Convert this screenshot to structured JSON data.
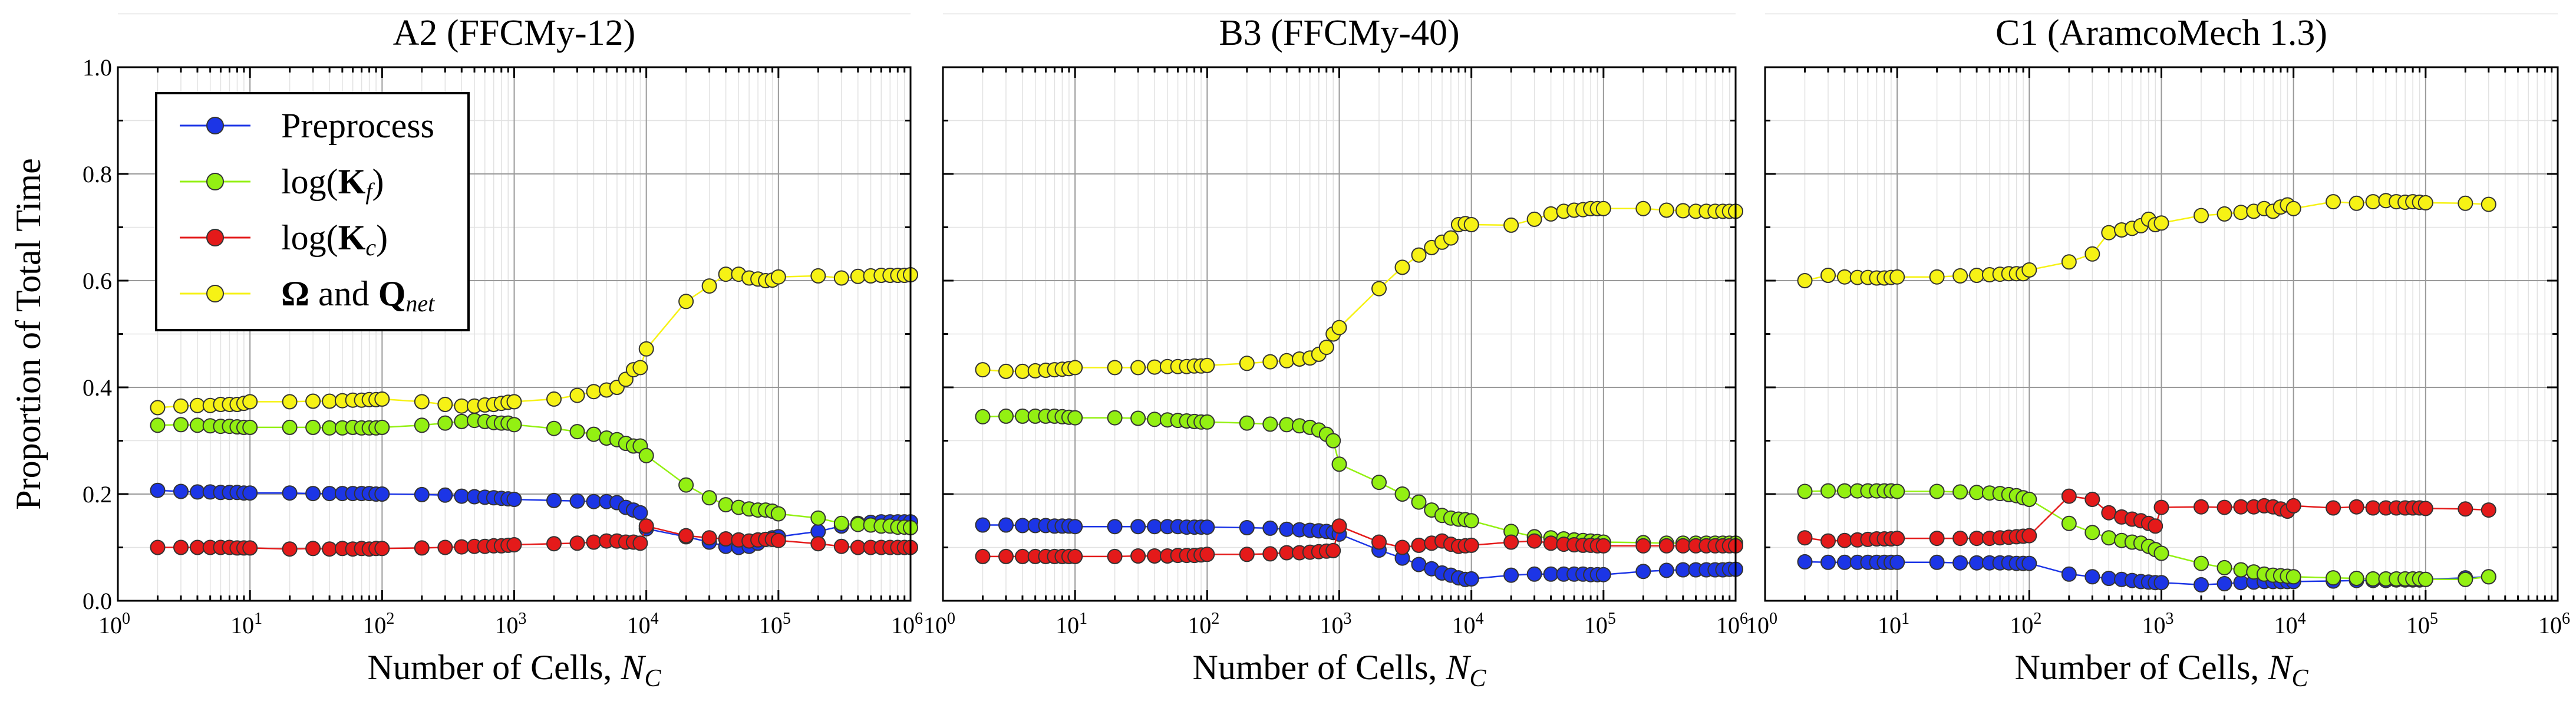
{
  "figure": {
    "ylabel": "Proportion of Total Time",
    "xlabel_text": "Number of Cells, ",
    "xlabel_var": "N",
    "xlabel_sub": "C",
    "legend": [
      {
        "html": [
          "Preprocess"
        ],
        "color": "#1c35e6"
      },
      {
        "html": [
          "log(",
          "K",
          "f",
          ")"
        ],
        "color": "#93f012"
      },
      {
        "html": [
          "log(",
          "K",
          "c",
          ")"
        ],
        "color": "#e41a1a"
      },
      {
        "html": [
          "Ω",
          " and ",
          "Q",
          "net"
        ],
        "color": "#f6f215"
      }
    ]
  },
  "chart_data": [
    {
      "type": "line",
      "title": "A2 (FFCMy-12)",
      "xscale": "log",
      "xlim": [
        1,
        1000000
      ],
      "ylim": [
        0,
        1.0
      ],
      "yticks": [
        "0.0",
        "0.2",
        "0.4",
        "0.6",
        "0.8",
        "1.0"
      ],
      "show_yticklabels": true,
      "grid": true,
      "legend_position": "upper-left",
      "x": [
        2,
        3,
        4,
        5,
        6,
        7,
        8,
        9,
        10,
        20,
        30,
        40,
        50,
        60,
        70,
        80,
        90,
        100,
        200,
        300,
        400,
        500,
        600,
        700,
        800,
        900,
        1000,
        2000,
        3000,
        4000,
        5000,
        6000,
        7000,
        8000,
        9000,
        10000,
        20000,
        30000,
        40000,
        50000,
        60000,
        70000,
        80000,
        90000,
        100000,
        200000,
        300000,
        400000,
        500000,
        600000,
        700000,
        800000,
        900000,
        1000000
      ],
      "series": [
        {
          "name": "Preprocess",
          "color": "#1c35e6",
          "values": [
            0.207,
            0.205,
            0.204,
            0.204,
            0.203,
            0.203,
            0.203,
            0.202,
            0.202,
            0.202,
            0.201,
            0.201,
            0.201,
            0.201,
            0.201,
            0.201,
            0.2,
            0.2,
            0.199,
            0.198,
            0.196,
            0.195,
            0.194,
            0.193,
            0.192,
            0.191,
            0.19,
            0.188,
            0.187,
            0.186,
            0.186,
            0.184,
            0.175,
            0.17,
            0.165,
            0.135,
            0.12,
            0.11,
            0.102,
            0.1,
            0.102,
            0.108,
            0.115,
            0.118,
            0.12,
            0.13,
            0.14,
            0.145,
            0.147,
            0.148,
            0.148,
            0.148,
            0.148,
            0.148
          ]
        },
        {
          "name": "log(Kf)",
          "color": "#93f012",
          "values": [
            0.329,
            0.33,
            0.329,
            0.328,
            0.327,
            0.327,
            0.326,
            0.325,
            0.325,
            0.325,
            0.325,
            0.324,
            0.324,
            0.325,
            0.324,
            0.324,
            0.324,
            0.325,
            0.329,
            0.333,
            0.336,
            0.338,
            0.336,
            0.334,
            0.333,
            0.333,
            0.33,
            0.323,
            0.317,
            0.312,
            0.305,
            0.302,
            0.295,
            0.29,
            0.29,
            0.272,
            0.217,
            0.193,
            0.18,
            0.175,
            0.172,
            0.17,
            0.17,
            0.168,
            0.163,
            0.155,
            0.145,
            0.143,
            0.142,
            0.14,
            0.14,
            0.138,
            0.138,
            0.137
          ]
        },
        {
          "name": "log(Kc)",
          "color": "#e41a1a",
          "values": [
            0.1,
            0.1,
            0.1,
            0.1,
            0.1,
            0.1,
            0.099,
            0.099,
            0.099,
            0.097,
            0.098,
            0.097,
            0.098,
            0.097,
            0.098,
            0.097,
            0.098,
            0.098,
            0.099,
            0.1,
            0.101,
            0.102,
            0.102,
            0.103,
            0.103,
            0.104,
            0.105,
            0.107,
            0.108,
            0.11,
            0.112,
            0.112,
            0.11,
            0.11,
            0.108,
            0.14,
            0.122,
            0.118,
            0.116,
            0.114,
            0.112,
            0.114,
            0.115,
            0.115,
            0.113,
            0.107,
            0.102,
            0.1,
            0.1,
            0.1,
            0.1,
            0.1,
            0.1,
            0.1
          ]
        },
        {
          "name": "Ω and Qnet",
          "color": "#f6f215",
          "values": [
            0.362,
            0.365,
            0.366,
            0.366,
            0.368,
            0.368,
            0.368,
            0.37,
            0.373,
            0.373,
            0.374,
            0.374,
            0.375,
            0.376,
            0.376,
            0.377,
            0.377,
            0.378,
            0.373,
            0.368,
            0.365,
            0.365,
            0.367,
            0.368,
            0.37,
            0.372,
            0.373,
            0.378,
            0.385,
            0.392,
            0.395,
            0.4,
            0.415,
            0.433,
            0.437,
            0.472,
            0.561,
            0.59,
            0.612,
            0.612,
            0.605,
            0.603,
            0.6,
            0.601,
            0.607,
            0.609,
            0.605,
            0.608,
            0.609,
            0.61,
            0.61,
            0.61,
            0.61,
            0.611
          ]
        }
      ]
    },
    {
      "type": "line",
      "title": "B3 (FFCMy-40)",
      "xscale": "log",
      "xlim": [
        1,
        1000000
      ],
      "ylim": [
        0,
        1.0
      ],
      "show_yticklabels": false,
      "grid": true,
      "x": [
        2,
        3,
        4,
        5,
        6,
        7,
        8,
        9,
        10,
        20,
        30,
        40,
        50,
        60,
        70,
        80,
        90,
        100,
        200,
        300,
        400,
        500,
        600,
        700,
        800,
        900,
        1000,
        2000,
        3000,
        4000,
        5000,
        6000,
        7000,
        8000,
        9000,
        10000,
        20000,
        30000,
        40000,
        50000,
        60000,
        70000,
        80000,
        90000,
        100000,
        200000,
        300000,
        400000,
        500000,
        600000,
        700000,
        800000,
        900000,
        1000000
      ],
      "series": [
        {
          "name": "Preprocess",
          "color": "#1c35e6",
          "values": [
            0.142,
            0.142,
            0.141,
            0.141,
            0.141,
            0.14,
            0.14,
            0.14,
            0.139,
            0.139,
            0.139,
            0.139,
            0.139,
            0.139,
            0.138,
            0.138,
            0.138,
            0.138,
            0.137,
            0.136,
            0.134,
            0.133,
            0.132,
            0.131,
            0.13,
            0.128,
            0.125,
            0.095,
            0.08,
            0.068,
            0.06,
            0.052,
            0.048,
            0.043,
            0.04,
            0.041,
            0.048,
            0.05,
            0.05,
            0.05,
            0.05,
            0.05,
            0.049,
            0.049,
            0.049,
            0.055,
            0.057,
            0.058,
            0.058,
            0.058,
            0.058,
            0.058,
            0.059,
            0.059
          ]
        },
        {
          "name": "log(Kf)",
          "color": "#93f012",
          "values": [
            0.345,
            0.346,
            0.346,
            0.346,
            0.346,
            0.346,
            0.345,
            0.344,
            0.343,
            0.343,
            0.342,
            0.34,
            0.339,
            0.338,
            0.337,
            0.336,
            0.335,
            0.335,
            0.333,
            0.331,
            0.33,
            0.328,
            0.325,
            0.32,
            0.312,
            0.3,
            0.256,
            0.222,
            0.2,
            0.185,
            0.17,
            0.16,
            0.155,
            0.153,
            0.152,
            0.15,
            0.13,
            0.12,
            0.118,
            0.116,
            0.114,
            0.113,
            0.112,
            0.111,
            0.11,
            0.109,
            0.108,
            0.108,
            0.108,
            0.108,
            0.108,
            0.108,
            0.108,
            0.108
          ]
        },
        {
          "name": "log(Kc)",
          "color": "#e41a1a",
          "values": [
            0.083,
            0.083,
            0.083,
            0.083,
            0.083,
            0.083,
            0.083,
            0.083,
            0.083,
            0.083,
            0.084,
            0.084,
            0.084,
            0.085,
            0.085,
            0.085,
            0.086,
            0.087,
            0.087,
            0.088,
            0.09,
            0.09,
            0.091,
            0.092,
            0.093,
            0.094,
            0.14,
            0.11,
            0.1,
            0.104,
            0.108,
            0.112,
            0.106,
            0.102,
            0.103,
            0.104,
            0.11,
            0.112,
            0.108,
            0.106,
            0.105,
            0.104,
            0.104,
            0.103,
            0.103,
            0.103,
            0.103,
            0.103,
            0.103,
            0.103,
            0.103,
            0.103,
            0.103,
            0.103
          ]
        },
        {
          "name": "Ω and Qnet",
          "color": "#f6f215",
          "values": [
            0.433,
            0.43,
            0.43,
            0.431,
            0.432,
            0.433,
            0.434,
            0.435,
            0.437,
            0.437,
            0.437,
            0.438,
            0.439,
            0.439,
            0.439,
            0.44,
            0.44,
            0.441,
            0.445,
            0.448,
            0.45,
            0.453,
            0.455,
            0.462,
            0.475,
            0.5,
            0.512,
            0.585,
            0.625,
            0.648,
            0.662,
            0.672,
            0.68,
            0.705,
            0.707,
            0.705,
            0.704,
            0.715,
            0.725,
            0.73,
            0.732,
            0.733,
            0.735,
            0.735,
            0.735,
            0.735,
            0.732,
            0.731,
            0.73,
            0.73,
            0.73,
            0.73,
            0.73,
            0.73
          ]
        }
      ]
    },
    {
      "type": "line",
      "title": "C1 (AramcoMech 1.3)",
      "xscale": "log",
      "xlim": [
        1,
        1000000
      ],
      "ylim": [
        0,
        1.0
      ],
      "show_yticklabels": false,
      "grid": true,
      "x": [
        2,
        3,
        4,
        5,
        6,
        7,
        8,
        9,
        10,
        20,
        30,
        40,
        50,
        60,
        70,
        80,
        90,
        100,
        200,
        300,
        400,
        500,
        600,
        700,
        800,
        900,
        1000,
        2000,
        3000,
        4000,
        5000,
        6000,
        7000,
        8000,
        9000,
        10000,
        20000,
        30000,
        40000,
        50000,
        60000,
        70000,
        80000,
        90000,
        100000,
        200000,
        300000
      ],
      "series": [
        {
          "name": "Preprocess",
          "color": "#1c35e6",
          "values": [
            0.073,
            0.072,
            0.072,
            0.072,
            0.072,
            0.072,
            0.072,
            0.072,
            0.072,
            0.072,
            0.071,
            0.071,
            0.071,
            0.071,
            0.071,
            0.07,
            0.07,
            0.07,
            0.05,
            0.045,
            0.042,
            0.04,
            0.038,
            0.036,
            0.035,
            0.034,
            0.034,
            0.03,
            0.032,
            0.034,
            0.035,
            0.036,
            0.036,
            0.036,
            0.036,
            0.036,
            0.037,
            0.038,
            0.038,
            0.038,
            0.039,
            0.039,
            0.039,
            0.039,
            0.04,
            0.043,
            0.045
          ]
        },
        {
          "name": "log(Kf)",
          "color": "#93f012",
          "values": [
            0.205,
            0.206,
            0.206,
            0.206,
            0.206,
            0.206,
            0.206,
            0.206,
            0.205,
            0.205,
            0.204,
            0.203,
            0.202,
            0.201,
            0.199,
            0.197,
            0.193,
            0.19,
            0.145,
            0.128,
            0.118,
            0.113,
            0.11,
            0.108,
            0.102,
            0.096,
            0.089,
            0.07,
            0.062,
            0.058,
            0.054,
            0.05,
            0.048,
            0.047,
            0.046,
            0.045,
            0.043,
            0.042,
            0.041,
            0.041,
            0.041,
            0.041,
            0.041,
            0.041,
            0.04,
            0.04,
            0.045
          ]
        },
        {
          "name": "log(Kc)",
          "color": "#e41a1a",
          "values": [
            0.118,
            0.112,
            0.113,
            0.114,
            0.115,
            0.116,
            0.116,
            0.116,
            0.117,
            0.117,
            0.117,
            0.117,
            0.117,
            0.118,
            0.119,
            0.12,
            0.121,
            0.122,
            0.196,
            0.19,
            0.165,
            0.157,
            0.153,
            0.15,
            0.145,
            0.14,
            0.175,
            0.176,
            0.175,
            0.176,
            0.176,
            0.178,
            0.176,
            0.172,
            0.168,
            0.178,
            0.174,
            0.176,
            0.174,
            0.174,
            0.174,
            0.174,
            0.174,
            0.174,
            0.173,
            0.172,
            0.17
          ]
        },
        {
          "name": "Ω and Qnet",
          "color": "#f6f215",
          "values": [
            0.6,
            0.61,
            0.607,
            0.606,
            0.606,
            0.605,
            0.605,
            0.606,
            0.607,
            0.607,
            0.609,
            0.61,
            0.611,
            0.612,
            0.613,
            0.613,
            0.613,
            0.62,
            0.635,
            0.65,
            0.69,
            0.695,
            0.698,
            0.703,
            0.715,
            0.705,
            0.708,
            0.722,
            0.725,
            0.728,
            0.73,
            0.735,
            0.73,
            0.738,
            0.742,
            0.735,
            0.748,
            0.745,
            0.748,
            0.75,
            0.748,
            0.747,
            0.748,
            0.747,
            0.746,
            0.745,
            0.743
          ]
        }
      ]
    }
  ]
}
